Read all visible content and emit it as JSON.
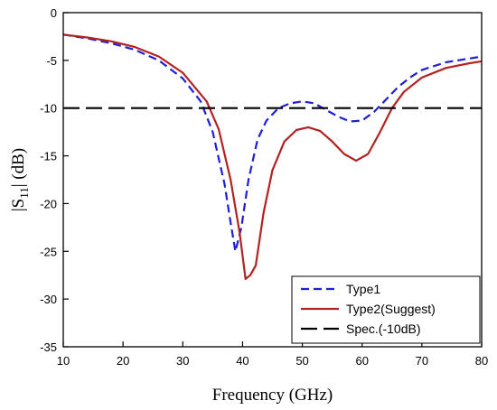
{
  "chart_data": {
    "type": "line",
    "xlabel": "Frequency (GHz)",
    "ylabel": "|S11| (dB)",
    "ylabel_parts": {
      "pre": "|S",
      "sub": "11",
      "post": "| (dB)"
    },
    "xlim": [
      10,
      80
    ],
    "ylim": [
      -35,
      0
    ],
    "xticks": [
      10,
      20,
      30,
      40,
      50,
      60,
      70,
      80
    ],
    "yticks": [
      0,
      -5,
      -10,
      -15,
      -20,
      -25,
      -30,
      -35
    ],
    "grid": false,
    "legend_position": "bottom-right",
    "series": [
      {
        "name": "Type1",
        "color": "#1f1fd6",
        "dash": "dashed",
        "x": [
          10,
          14,
          18,
          22,
          26,
          30,
          33,
          35,
          37,
          38,
          38.8,
          39.8,
          41,
          42.5,
          44,
          46,
          48,
          50,
          52,
          54,
          56,
          58,
          60,
          62,
          64,
          66,
          68,
          70,
          74,
          78,
          80
        ],
        "y": [
          -2.3,
          -2.7,
          -3.2,
          -3.9,
          -5.0,
          -6.9,
          -9.3,
          -12.5,
          -18,
          -22,
          -25,
          -22.5,
          -17.5,
          -13.3,
          -11.3,
          -10,
          -9.5,
          -9.3,
          -9.5,
          -10.2,
          -10.9,
          -11.4,
          -11.3,
          -10.4,
          -9.1,
          -7.8,
          -6.8,
          -6.0,
          -5.2,
          -4.8,
          -4.6
        ]
      },
      {
        "name": "Type2(Suggest)",
        "color": "#b22222",
        "dash": "solid",
        "x": [
          10,
          14,
          18,
          22,
          26,
          30,
          34,
          36,
          38,
          39.5,
          40.5,
          41.3,
          42.2,
          43.5,
          45,
          47,
          49,
          51,
          53,
          55,
          57,
          59,
          61,
          63,
          65,
          67,
          70,
          74,
          78,
          80
        ],
        "y": [
          -2.3,
          -2.6,
          -3.0,
          -3.6,
          -4.6,
          -6.3,
          -9.3,
          -12.2,
          -17.5,
          -23.0,
          -27.9,
          -27.5,
          -26.5,
          -21.0,
          -16.5,
          -13.5,
          -12.3,
          -12.0,
          -12.4,
          -13.5,
          -14.8,
          -15.5,
          -14.8,
          -12.5,
          -10.0,
          -8.3,
          -6.8,
          -5.8,
          -5.3,
          -5.1
        ]
      },
      {
        "name": "Spec.(-10dB)",
        "color": "#000000",
        "dash": "long-dash",
        "x": [
          10,
          80
        ],
        "y": [
          -10,
          -10
        ]
      }
    ]
  }
}
